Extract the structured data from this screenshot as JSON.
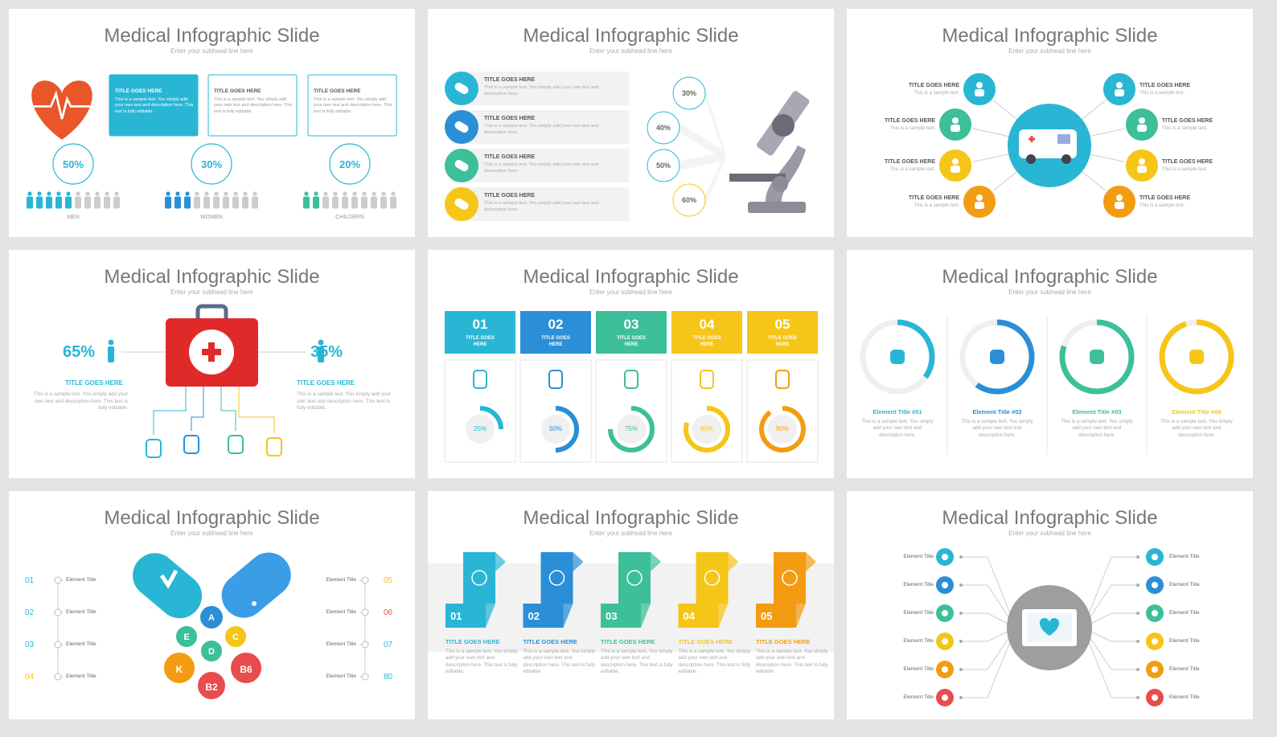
{
  "slides": [
    {
      "title": "Medical Infographic Slide",
      "subtitle": "Enter your subhead line here",
      "boxes": [
        {
          "title": "TITLE GOES HERE",
          "text": "This is a sample text. You simply add your own text and description here. This text is fully editable."
        },
        {
          "title": "TITLE GOES HERE",
          "text": "This is a sample text. You simply add your own text and description here. This text is fully editable."
        },
        {
          "title": "TITLE GOES HERE",
          "text": "This is a sample text. You simply add your own text and description here. This text is fully editable."
        }
      ],
      "groups": [
        {
          "percent": {
            "value": 50,
            "label": "50%"
          },
          "name": "MEN"
        },
        {
          "percent": {
            "value": 30,
            "label": "30%"
          },
          "name": "WOMEN"
        },
        {
          "percent": {
            "value": 20,
            "label": "20%"
          },
          "name": "CHILDERN"
        }
      ]
    },
    {
      "title": "Medical Infographic Slide",
      "subtitle": "Enter your subhead line here",
      "items": [
        {
          "title": "TITLE GOES HERE",
          "text": "This is a sample text. You simply add your own text and description here."
        },
        {
          "title": "TITLE GOES HERE",
          "text": "This is a sample text. You simply add your own text and description here."
        },
        {
          "title": "TITLE GOES HERE",
          "text": "This is a sample text. You simply add your own text and description here."
        },
        {
          "title": "TITLE GOES HERE",
          "text": "This is a sample text. You simply add your own text and description here."
        }
      ],
      "percents": [
        {
          "value": 30,
          "label": "30%"
        },
        {
          "value": 40,
          "label": "40%"
        },
        {
          "value": 50,
          "label": "50%"
        },
        {
          "value": 60,
          "label": "60%"
        }
      ]
    },
    {
      "title": "Medical Infographic Slide",
      "subtitle": "Enter your subhead line here",
      "left": [
        {
          "title": "TITLE GOES HERE",
          "text": "This is a sample text."
        },
        {
          "title": "TITLE GOES HERE",
          "text": "This is a sample text."
        },
        {
          "title": "TITLE GOES HERE",
          "text": "This is a sample text."
        },
        {
          "title": "TITLE GOES HERE",
          "text": "This is a sample text."
        }
      ],
      "right": [
        {
          "title": "TITLE GOES HERE",
          "text": "This is a sample text."
        },
        {
          "title": "TITLE GOES HERE",
          "text": "This is a sample text."
        },
        {
          "title": "TITLE GOES HERE",
          "text": "This is a sample text."
        },
        {
          "title": "TITLE GOES HERE",
          "text": "This is a sample text."
        }
      ]
    },
    {
      "title": "Medical Infographic Slide",
      "subtitle": "Enter your subhead line here",
      "left": {
        "percent": {
          "value": 65,
          "label": "65%"
        },
        "title": "TITLE GOES HERE",
        "text": "This is a sample text. You simply add your own text and description here. This text is fully editable."
      },
      "right": {
        "percent": {
          "value": 35,
          "label": "35%"
        },
        "title": "TITLE GOES HERE",
        "text": "This is a sample text. You simply add your own text and description here. This text is fully editable."
      }
    },
    {
      "title": "Medical Infographic Slide",
      "subtitle": "Enter your subhead line here",
      "columns": [
        {
          "number": "01",
          "title": "TITLE GOES HERE",
          "percent": {
            "value": 25,
            "label": "25%"
          }
        },
        {
          "number": "02",
          "title": "TITLE GOES HERE",
          "percent": {
            "value": 50,
            "label": "50%"
          }
        },
        {
          "number": "03",
          "title": "TITLE GOES HERE",
          "percent": {
            "value": 75,
            "label": "75%"
          }
        },
        {
          "number": "04",
          "title": "TITLE GOES HERE",
          "percent": {
            "value": 80,
            "label": "80%"
          }
        },
        {
          "number": "05",
          "title": "TITLE GOES HERE",
          "percent": {
            "value": 90,
            "label": "90%"
          }
        }
      ]
    },
    {
      "title": "Medical Infographic Slide",
      "subtitle": "Enter your subhead line here",
      "elements": [
        {
          "title": "Element Title #01",
          "text": "This is a sample text. You simply add your own text and description here.",
          "progress": 35
        },
        {
          "title": "Element Title #02",
          "text": "This is a sample text. You simply add your own text and description here.",
          "progress": 60
        },
        {
          "title": "Element Title #03",
          "text": "This is a sample text. You simply add your own text and description here.",
          "progress": 80
        },
        {
          "title": "Element Title #04",
          "text": "This is a sample text. You simply add your own text and description here.",
          "progress": 95
        }
      ]
    },
    {
      "title": "Medical Infographic Slide",
      "subtitle": "Enter your subhead line here",
      "left": [
        {
          "number": "01",
          "title": "Element Title"
        },
        {
          "number": "02",
          "title": "Element Title"
        },
        {
          "number": "03",
          "title": "Element Title"
        },
        {
          "number": "04",
          "title": "Element Title"
        }
      ],
      "right": [
        {
          "number": "05",
          "title": "Element Title"
        },
        {
          "number": "06",
          "title": "Element Title"
        },
        {
          "number": "07",
          "title": "Element Title"
        },
        {
          "number": "80",
          "title": "Element Title"
        }
      ],
      "letters": [
        "A",
        "E",
        "C",
        "D",
        "K",
        "B6",
        "B2"
      ]
    },
    {
      "title": "Medical Infographic Slide",
      "subtitle": "Enter your subhead line here",
      "steps": [
        {
          "number": "01",
          "title": "TITLE GOES HERE",
          "text": "This is a sample text. You simply add your own text and description here. This text is fully editable."
        },
        {
          "number": "02",
          "title": "TITLE GOES HERE",
          "text": "This is a sample text. You simply add your own text and description here. This text is fully editable."
        },
        {
          "number": "03",
          "title": "TITLE GOES HERE",
          "text": "This is a sample text. You simply add your own text and description here. This text is fully editable."
        },
        {
          "number": "04",
          "title": "TITLE GOES HERE",
          "text": "This is a sample text. You simply add your own text and description here. This text is fully editable."
        },
        {
          "number": "05",
          "title": "TITLE GOES HERE",
          "text": "This is a sample text. You simply add your own text and description here. This text is fully editable."
        }
      ]
    },
    {
      "title": "Medical Infographic Slide",
      "subtitle": "Enter your subhead line here",
      "left": [
        "Element Title",
        "Element Title",
        "Element Title",
        "Element Title",
        "Element Title",
        "Element Title"
      ],
      "right": [
        "Element Title",
        "Element Title",
        "Element Title",
        "Element Title",
        "Element Title",
        "Element Title"
      ]
    }
  ]
}
